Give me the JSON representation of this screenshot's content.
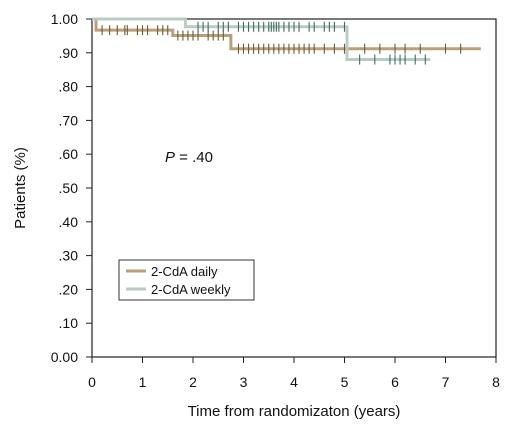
{
  "chart_data": {
    "type": "line",
    "subtype": "kaplan-meier step",
    "title": "",
    "xlabel": "Time from randomizaton (years)",
    "ylabel": "Patients (%)",
    "xlim": [
      0,
      8
    ],
    "ylim": [
      0,
      1
    ],
    "xticks": [
      0,
      1,
      2,
      3,
      4,
      5,
      6,
      7,
      8
    ],
    "xtick_labels": [
      "0",
      "1",
      "2",
      "3",
      "4",
      "5",
      "6",
      "7",
      "8"
    ],
    "yticks": [
      0,
      0.1,
      0.2,
      0.3,
      0.4,
      0.5,
      0.6,
      0.7,
      0.8,
      0.9,
      1.0
    ],
    "ytick_labels": [
      "0.00",
      ".10",
      ".20",
      ".30",
      ".40",
      ".50",
      ".60",
      ".70",
      ".80",
      ".90",
      "1.00"
    ],
    "grid": false,
    "annotation": {
      "label": "P",
      "text": " = .40",
      "x": 1.45,
      "y": 0.6
    },
    "legend": {
      "placement": "bottom-left"
    },
    "series": [
      {
        "name": "2-CdA daily",
        "color": "#b8a07a",
        "steps": [
          [
            0,
            1.0
          ],
          [
            0.08,
            0.967
          ],
          [
            1.6,
            0.951
          ],
          [
            2.75,
            0.912
          ],
          [
            7.7,
            0.912
          ]
        ],
        "censored": [
          0.2,
          0.35,
          0.5,
          0.65,
          0.7,
          0.9,
          1.0,
          1.1,
          1.3,
          1.4,
          1.5,
          1.7,
          1.8,
          1.9,
          2.0,
          2.1,
          2.3,
          2.4,
          2.5,
          2.6,
          2.9,
          3.0,
          3.1,
          3.2,
          3.3,
          3.4,
          3.5,
          3.6,
          3.7,
          3.8,
          3.9,
          4.0,
          4.1,
          4.2,
          4.3,
          4.4,
          4.6,
          4.8,
          5.0,
          5.4,
          5.7,
          6.0,
          6.2,
          6.5,
          7.0,
          7.3
        ]
      },
      {
        "name": "2-CdA weekly",
        "color": "#b9cbc3",
        "steps": [
          [
            0,
            1.0
          ],
          [
            1.85,
            0.977
          ],
          [
            5.05,
            0.88
          ],
          [
            6.7,
            0.88
          ]
        ],
        "censored": [
          2.1,
          2.2,
          2.3,
          2.5,
          2.6,
          2.7,
          2.9,
          3.0,
          3.1,
          3.2,
          3.3,
          3.4,
          3.5,
          3.55,
          3.6,
          3.65,
          3.7,
          3.8,
          3.9,
          4.0,
          4.1,
          4.3,
          4.4,
          4.6,
          4.7,
          4.8,
          5.0,
          5.3,
          5.6,
          5.9,
          6.0,
          6.1,
          6.2,
          6.4,
          6.6
        ]
      }
    ]
  }
}
